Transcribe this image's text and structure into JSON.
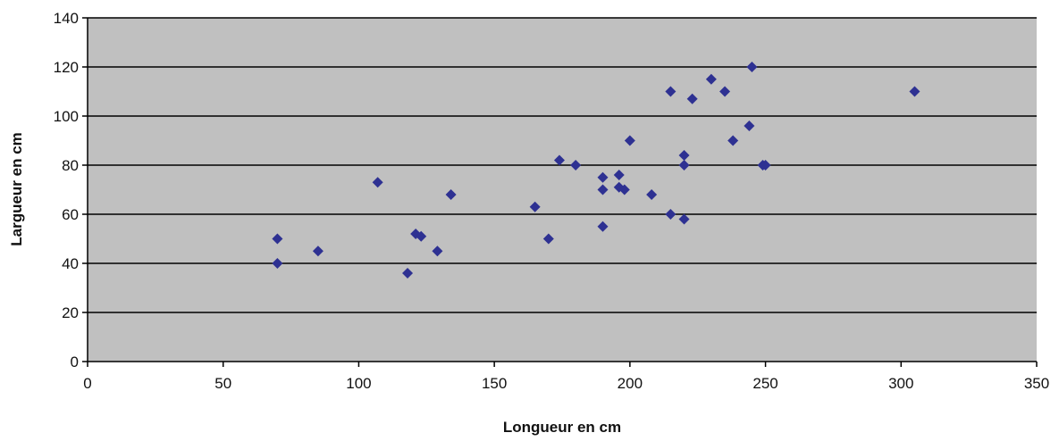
{
  "chart_data": {
    "type": "scatter",
    "title": "",
    "xlabel": "Longueur en cm",
    "ylabel": "Largueur en cm",
    "xlim": [
      0,
      350
    ],
    "ylim": [
      0,
      140
    ],
    "x_ticks": [
      0,
      50,
      100,
      150,
      200,
      250,
      300,
      350
    ],
    "y_ticks": [
      0,
      20,
      40,
      60,
      80,
      100,
      120,
      140
    ],
    "x_tick_labels": [
      "0",
      "50",
      "100",
      "150",
      "200",
      "250",
      "300",
      "350"
    ],
    "y_tick_labels": [
      "0",
      "20",
      "40",
      "60",
      "80",
      "100",
      "120",
      "140"
    ],
    "grid": "horizontal",
    "legend": "none",
    "marker": "diamond",
    "colors": {
      "plot_background": "#c0c0c0",
      "marker": "#2e3192",
      "gridline": "#000000"
    },
    "series": [
      {
        "points": [
          [
            70,
            50
          ],
          [
            70,
            40
          ],
          [
            85,
            45
          ],
          [
            107,
            73
          ],
          [
            118,
            36
          ],
          [
            121,
            52
          ],
          [
            123,
            51
          ],
          [
            129,
            45
          ],
          [
            134,
            68
          ],
          [
            165,
            63
          ],
          [
            170,
            50
          ],
          [
            174,
            82
          ],
          [
            180,
            80
          ],
          [
            190,
            75
          ],
          [
            190,
            70
          ],
          [
            190,
            55
          ],
          [
            196,
            76
          ],
          [
            196,
            71
          ],
          [
            198,
            70
          ],
          [
            200,
            90
          ],
          [
            208,
            68
          ],
          [
            215,
            110
          ],
          [
            215,
            60
          ],
          [
            220,
            84
          ],
          [
            220,
            80
          ],
          [
            220,
            58
          ],
          [
            223,
            107
          ],
          [
            230,
            115
          ],
          [
            235,
            110
          ],
          [
            238,
            90
          ],
          [
            244,
            96
          ],
          [
            245,
            120
          ],
          [
            249,
            80
          ],
          [
            250,
            80
          ],
          [
            305,
            110
          ]
        ]
      }
    ]
  }
}
